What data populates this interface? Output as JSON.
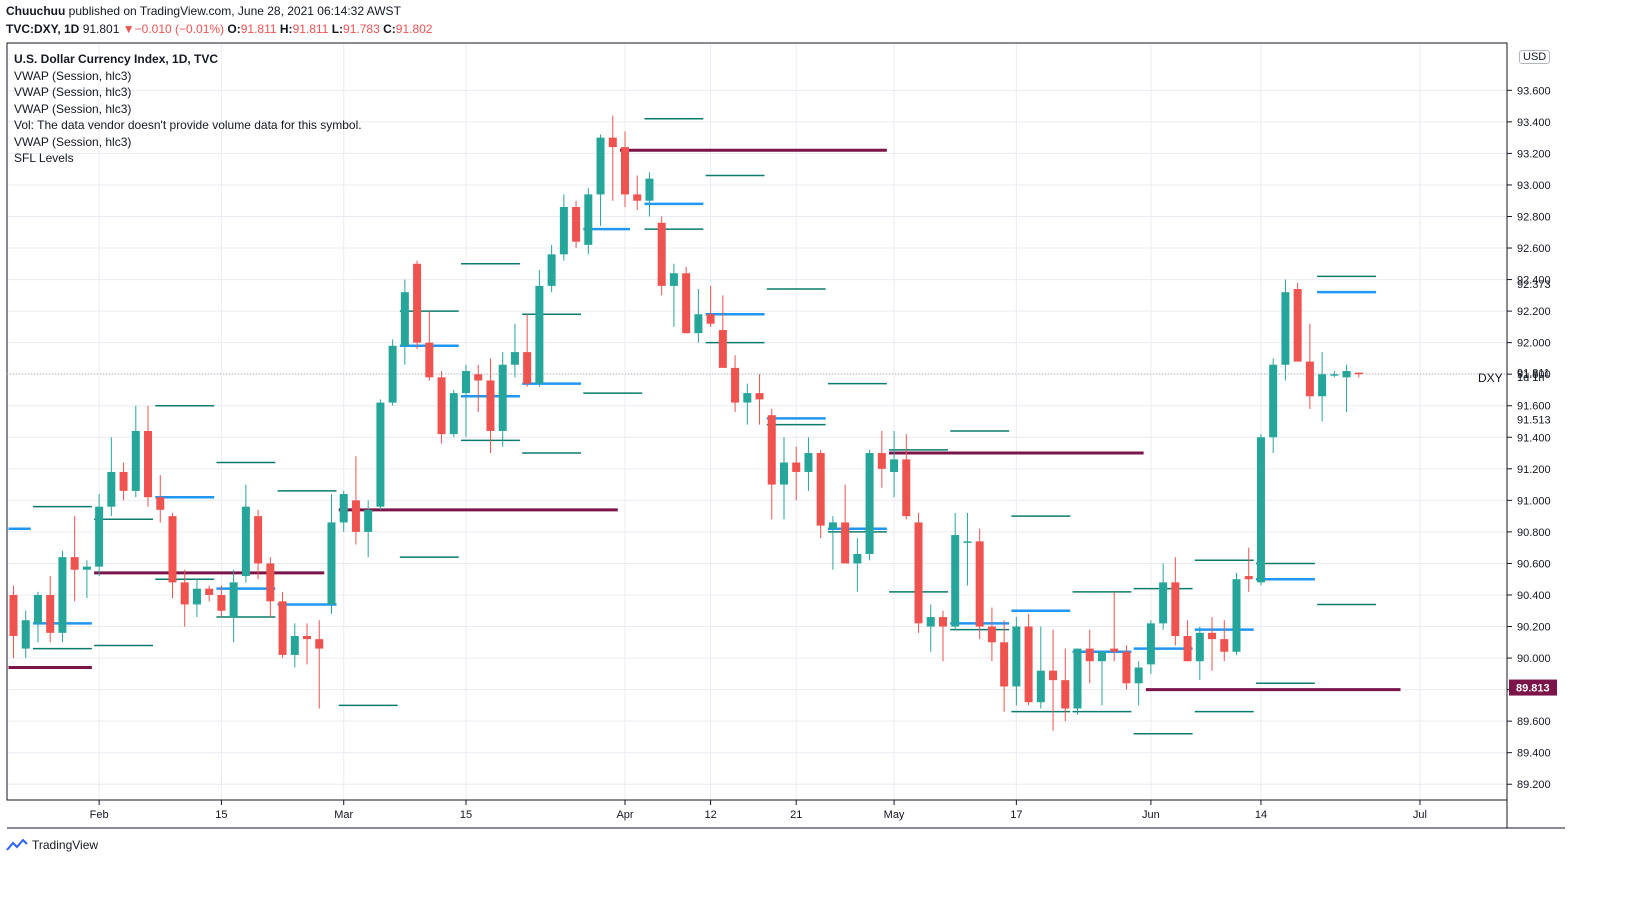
{
  "header": {
    "author": "Chuuchuu",
    "published": "published on TradingView.com, June 28, 2021 06:14:32 AWST",
    "symbol": "TVC:DXY, 1D",
    "last": "91.801",
    "change": "−0.010 (−0.01%)",
    "o_label": "O:",
    "o": "91.811",
    "h_label": "H:",
    "h": "91.811",
    "l_label": "L:",
    "l": "91.783",
    "c_label": "C:",
    "c": "91.802"
  },
  "legend": [
    "U.S. Dollar Currency Index, 1D, TVC",
    "VWAP (Session, hlc3)",
    "VWAP (Session, hlc3)",
    "VWAP (Session, hlc3)",
    "Vol: The data vendor doesn't provide volume data for this symbol.",
    "VWAP (Session, hlc3)",
    "SFL Levels"
  ],
  "symbol_tag": "DXY",
  "timeframe_tag": "1d 1h",
  "currency_button": "USD",
  "branding": "TradingView",
  "colors": {
    "up": "#26a69a",
    "down": "#ef5350",
    "vwap": "#2196f3",
    "level_green": "#0a7c6e",
    "sfl": "#7b1448",
    "grid": "#e9ecf2"
  },
  "chart_data": {
    "type": "candlestick",
    "ylim": [
      89.1,
      93.9
    ],
    "y_ticks": [
      89.2,
      89.4,
      89.6,
      89.8,
      90.0,
      90.2,
      90.4,
      90.6,
      90.8,
      91.0,
      91.2,
      91.4,
      91.6,
      91.8,
      92.0,
      92.2,
      92.4,
      92.6,
      92.8,
      93.0,
      93.2,
      93.4,
      93.6
    ],
    "y_tick_labels": [
      "89.200",
      "89.400",
      "89.600",
      "89.800",
      "90.000",
      "90.200",
      "90.400",
      "90.600",
      "90.800",
      "91.000",
      "91.200",
      "91.400",
      "91.600",
      "91.800",
      "92.000",
      "92.200",
      "92.400",
      "92.600",
      "92.800",
      "93.000",
      "93.200",
      "93.400",
      "93.600"
    ],
    "x_labels": [
      {
        "label": "Feb",
        "idx": 7
      },
      {
        "label": "15",
        "idx": 17
      },
      {
        "label": "Mar",
        "idx": 27
      },
      {
        "label": "15",
        "idx": 37
      },
      {
        "label": "Apr",
        "idx": 50
      },
      {
        "label": "12",
        "idx": 57
      },
      {
        "label": "21",
        "idx": 64
      },
      {
        "label": "May",
        "idx": 72
      },
      {
        "label": "17",
        "idx": 82
      },
      {
        "label": "Jun",
        "idx": 93
      },
      {
        "label": "14",
        "idx": 102
      },
      {
        "label": "Jul",
        "idx": 115
      }
    ],
    "price_labels": [
      {
        "value": 92.373,
        "text": "92.373"
      },
      {
        "value": 91.811,
        "text": "91.811"
      },
      {
        "value": 91.513,
        "text": "91.513"
      }
    ],
    "sfl_label": {
      "value": 89.813,
      "text": "89.813"
    },
    "candles": [
      [
        90.4,
        90.46,
        90.0,
        90.14
      ],
      [
        90.06,
        90.3,
        90.0,
        90.24
      ],
      [
        90.22,
        90.42,
        90.1,
        90.4
      ],
      [
        90.4,
        90.52,
        90.1,
        90.16
      ],
      [
        90.16,
        90.68,
        90.1,
        90.64
      ],
      [
        90.64,
        90.9,
        90.36,
        90.56
      ],
      [
        90.56,
        90.62,
        90.38,
        90.58
      ],
      [
        90.58,
        91.04,
        90.52,
        90.96
      ],
      [
        90.96,
        91.4,
        90.9,
        91.18
      ],
      [
        91.18,
        91.24,
        91.0,
        91.06
      ],
      [
        91.06,
        91.6,
        91.02,
        91.44
      ],
      [
        91.44,
        91.6,
        90.96,
        91.02
      ],
      [
        91.02,
        91.16,
        90.86,
        90.94
      ],
      [
        90.9,
        90.92,
        90.38,
        90.48
      ],
      [
        90.48,
        90.56,
        90.2,
        90.34
      ],
      [
        90.34,
        90.5,
        90.26,
        90.44
      ],
      [
        90.44,
        90.46,
        90.36,
        90.4
      ],
      [
        90.4,
        90.46,
        90.26,
        90.3
      ],
      [
        90.26,
        90.56,
        90.1,
        90.48
      ],
      [
        90.52,
        91.1,
        90.48,
        90.96
      ],
      [
        90.9,
        90.94,
        90.5,
        90.6
      ],
      [
        90.6,
        90.64,
        90.26,
        90.36
      ],
      [
        90.36,
        90.42,
        90.0,
        90.02
      ],
      [
        90.02,
        90.22,
        89.94,
        90.14
      ],
      [
        90.14,
        90.22,
        89.96,
        90.12
      ],
      [
        90.12,
        90.24,
        89.68,
        90.06
      ],
      [
        90.34,
        91.04,
        90.28,
        90.86
      ],
      [
        90.86,
        91.06,
        90.8,
        91.04
      ],
      [
        91.0,
        91.28,
        90.72,
        90.8
      ],
      [
        90.8,
        91.0,
        90.64,
        90.94
      ],
      [
        90.96,
        91.64,
        90.94,
        91.62
      ],
      [
        91.62,
        92.02,
        91.6,
        91.98
      ],
      [
        91.98,
        92.4,
        91.86,
        92.32
      ],
      [
        92.5,
        92.52,
        91.96,
        92.0
      ],
      [
        92.0,
        92.2,
        91.76,
        91.78
      ],
      [
        91.78,
        91.82,
        91.36,
        91.42
      ],
      [
        91.42,
        91.7,
        91.4,
        91.68
      ],
      [
        91.68,
        91.86,
        91.4,
        91.82
      ],
      [
        91.8,
        91.86,
        91.56,
        91.76
      ],
      [
        91.76,
        91.9,
        91.3,
        91.44
      ],
      [
        91.44,
        91.94,
        91.34,
        91.86
      ],
      [
        91.86,
        92.12,
        91.78,
        91.94
      ],
      [
        91.94,
        92.18,
        91.72,
        91.74
      ],
      [
        91.74,
        92.46,
        91.72,
        92.36
      ],
      [
        92.36,
        92.62,
        92.32,
        92.56
      ],
      [
        92.56,
        92.94,
        92.52,
        92.86
      ],
      [
        92.86,
        92.9,
        92.6,
        92.64
      ],
      [
        92.62,
        92.98,
        92.56,
        92.94
      ],
      [
        92.94,
        93.32,
        92.74,
        93.3
      ],
      [
        93.3,
        93.44,
        92.9,
        93.24
      ],
      [
        93.24,
        93.34,
        92.86,
        92.94
      ],
      [
        92.94,
        93.06,
        92.84,
        92.9
      ],
      [
        92.9,
        93.08,
        92.8,
        93.04
      ],
      [
        92.76,
        92.8,
        92.3,
        92.36
      ],
      [
        92.36,
        92.5,
        92.1,
        92.44
      ],
      [
        92.44,
        92.48,
        92.06,
        92.06
      ],
      [
        92.06,
        92.34,
        92.0,
        92.18
      ],
      [
        92.18,
        92.36,
        92.1,
        92.12
      ],
      [
        92.08,
        92.3,
        91.86,
        91.84
      ],
      [
        91.84,
        91.92,
        91.56,
        91.62
      ],
      [
        91.62,
        91.74,
        91.48,
        91.68
      ],
      [
        91.68,
        91.8,
        91.48,
        91.64
      ],
      [
        91.54,
        91.58,
        90.88,
        91.1
      ],
      [
        91.1,
        91.4,
        90.88,
        91.24
      ],
      [
        91.24,
        91.34,
        91.0,
        91.18
      ],
      [
        91.18,
        91.4,
        91.06,
        91.3
      ],
      [
        91.3,
        91.32,
        90.76,
        90.84
      ],
      [
        90.82,
        90.9,
        90.56,
        90.86
      ],
      [
        90.86,
        91.1,
        90.6,
        90.6
      ],
      [
        90.6,
        90.76,
        90.42,
        90.66
      ],
      [
        90.66,
        91.32,
        90.62,
        91.3
      ],
      [
        91.3,
        91.44,
        91.08,
        91.2
      ],
      [
        91.18,
        91.44,
        91.02,
        91.26
      ],
      [
        91.26,
        91.42,
        90.88,
        90.9
      ],
      [
        90.86,
        90.92,
        90.16,
        90.22
      ],
      [
        90.2,
        90.34,
        90.04,
        90.26
      ],
      [
        90.26,
        90.3,
        89.98,
        90.2
      ],
      [
        90.2,
        90.92,
        90.18,
        90.78
      ],
      [
        90.74,
        90.92,
        90.46,
        90.74
      ],
      [
        90.74,
        90.82,
        90.12,
        90.2
      ],
      [
        90.2,
        90.32,
        89.98,
        90.1
      ],
      [
        90.1,
        90.24,
        89.66,
        89.82
      ],
      [
        89.82,
        90.26,
        89.7,
        90.2
      ],
      [
        90.2,
        90.28,
        89.7,
        89.72
      ],
      [
        89.72,
        90.2,
        89.68,
        89.92
      ],
      [
        89.92,
        90.18,
        89.54,
        89.86
      ],
      [
        89.86,
        90.06,
        89.6,
        89.68
      ],
      [
        89.68,
        90.06,
        89.64,
        90.06
      ],
      [
        90.06,
        90.18,
        89.84,
        89.98
      ],
      [
        89.98,
        90.04,
        89.7,
        90.04
      ],
      [
        90.06,
        90.42,
        89.98,
        90.04
      ],
      [
        90.04,
        90.08,
        89.8,
        89.84
      ],
      [
        89.84,
        89.98,
        89.7,
        89.94
      ],
      [
        89.96,
        90.24,
        89.9,
        90.22
      ],
      [
        90.22,
        90.6,
        90.18,
        90.48
      ],
      [
        90.48,
        90.64,
        90.08,
        90.14
      ],
      [
        90.14,
        90.24,
        89.98,
        89.98
      ],
      [
        89.98,
        90.2,
        89.86,
        90.16
      ],
      [
        90.16,
        90.26,
        89.92,
        90.12
      ],
      [
        90.12,
        90.24,
        89.98,
        90.04
      ],
      [
        90.04,
        90.54,
        90.02,
        90.5
      ],
      [
        90.52,
        90.7,
        90.42,
        90.5
      ],
      [
        90.48,
        91.42,
        90.46,
        91.4
      ],
      [
        91.4,
        91.9,
        91.3,
        91.86
      ],
      [
        91.86,
        92.4,
        91.76,
        92.32
      ],
      [
        92.34,
        92.38,
        91.88,
        91.88
      ],
      [
        91.88,
        92.12,
        91.58,
        91.66
      ],
      [
        91.66,
        91.94,
        91.5,
        91.8
      ],
      [
        91.8,
        91.82,
        91.78,
        91.8
      ],
      [
        91.78,
        91.86,
        91.56,
        91.82
      ],
      [
        91.81,
        91.81,
        91.78,
        91.8
      ]
    ],
    "levels": [
      {
        "y": 90.82,
        "x0": 0,
        "x1": 1,
        "kind": "vwap"
      },
      {
        "y": 90.96,
        "x0": 2,
        "x1": 6,
        "kind": "green"
      },
      {
        "y": 90.22,
        "x0": 2,
        "x1": 6,
        "kind": "vwap"
      },
      {
        "y": 90.06,
        "x0": 2,
        "x1": 6,
        "kind": "green"
      },
      {
        "y": 89.94,
        "x0": 0,
        "x1": 6,
        "kind": "sfl"
      },
      {
        "y": 90.88,
        "x0": 7,
        "x1": 11,
        "kind": "green"
      },
      {
        "y": 90.08,
        "x0": 7,
        "x1": 11,
        "kind": "green"
      },
      {
        "y": 90.54,
        "x0": 7,
        "x1": 25,
        "kind": "sfl"
      },
      {
        "y": 91.6,
        "x0": 12,
        "x1": 16,
        "kind": "green"
      },
      {
        "y": 91.02,
        "x0": 12,
        "x1": 16,
        "kind": "vwap"
      },
      {
        "y": 90.5,
        "x0": 12,
        "x1": 16,
        "kind": "green"
      },
      {
        "y": 91.24,
        "x0": 17,
        "x1": 21,
        "kind": "green"
      },
      {
        "y": 90.44,
        "x0": 17,
        "x1": 21,
        "kind": "vwap"
      },
      {
        "y": 90.26,
        "x0": 17,
        "x1": 21,
        "kind": "green"
      },
      {
        "y": 91.06,
        "x0": 22,
        "x1": 26,
        "kind": "green"
      },
      {
        "y": 90.34,
        "x0": 22,
        "x1": 26,
        "kind": "vwap"
      },
      {
        "y": 89.7,
        "x0": 27,
        "x1": 31,
        "kind": "green"
      },
      {
        "y": 90.94,
        "x0": 27,
        "x1": 49,
        "kind": "sfl"
      },
      {
        "y": 90.64,
        "x0": 32,
        "x1": 36,
        "kind": "green"
      },
      {
        "y": 92.2,
        "x0": 32,
        "x1": 36,
        "kind": "green"
      },
      {
        "y": 91.98,
        "x0": 32,
        "x1": 36,
        "kind": "vwap"
      },
      {
        "y": 92.5,
        "x0": 37,
        "x1": 41,
        "kind": "green"
      },
      {
        "y": 91.66,
        "x0": 37,
        "x1": 41,
        "kind": "vwap"
      },
      {
        "y": 91.38,
        "x0": 37,
        "x1": 41,
        "kind": "green"
      },
      {
        "y": 92.18,
        "x0": 42,
        "x1": 46,
        "kind": "green"
      },
      {
        "y": 91.74,
        "x0": 42,
        "x1": 46,
        "kind": "vwap"
      },
      {
        "y": 91.3,
        "x0": 42,
        "x1": 46,
        "kind": "green"
      },
      {
        "y": 92.72,
        "x0": 47,
        "x1": 50,
        "kind": "vwap"
      },
      {
        "y": 91.68,
        "x0": 47,
        "x1": 51,
        "kind": "green"
      },
      {
        "y": 93.22,
        "x0": 50,
        "x1": 71,
        "kind": "sfl"
      },
      {
        "y": 93.42,
        "x0": 52,
        "x1": 56,
        "kind": "green"
      },
      {
        "y": 92.88,
        "x0": 52,
        "x1": 56,
        "kind": "vwap"
      },
      {
        "y": 92.72,
        "x0": 52,
        "x1": 56,
        "kind": "green"
      },
      {
        "y": 93.06,
        "x0": 57,
        "x1": 61,
        "kind": "green"
      },
      {
        "y": 92.18,
        "x0": 57,
        "x1": 61,
        "kind": "vwap"
      },
      {
        "y": 92.0,
        "x0": 57,
        "x1": 61,
        "kind": "green"
      },
      {
        "y": 92.34,
        "x0": 62,
        "x1": 66,
        "kind": "green"
      },
      {
        "y": 91.52,
        "x0": 62,
        "x1": 66,
        "kind": "vwap"
      },
      {
        "y": 91.48,
        "x0": 62,
        "x1": 66,
        "kind": "green"
      },
      {
        "y": 91.74,
        "x0": 67,
        "x1": 71,
        "kind": "green"
      },
      {
        "y": 90.82,
        "x0": 67,
        "x1": 71,
        "kind": "vwap"
      },
      {
        "y": 90.8,
        "x0": 67,
        "x1": 71,
        "kind": "green"
      },
      {
        "y": 91.32,
        "x0": 72,
        "x1": 76,
        "kind": "green"
      },
      {
        "y": 91.3,
        "x0": 72,
        "x1": 92,
        "kind": "sfl"
      },
      {
        "y": 90.42,
        "x0": 72,
        "x1": 76,
        "kind": "green"
      },
      {
        "y": 91.44,
        "x0": 77,
        "x1": 81,
        "kind": "green"
      },
      {
        "y": 90.22,
        "x0": 77,
        "x1": 81,
        "kind": "vwap"
      },
      {
        "y": 90.18,
        "x0": 77,
        "x1": 81,
        "kind": "green"
      },
      {
        "y": 90.9,
        "x0": 82,
        "x1": 86,
        "kind": "green"
      },
      {
        "y": 90.3,
        "x0": 82,
        "x1": 86,
        "kind": "vwap"
      },
      {
        "y": 89.66,
        "x0": 82,
        "x1": 86,
        "kind": "green"
      },
      {
        "y": 90.42,
        "x0": 87,
        "x1": 91,
        "kind": "green"
      },
      {
        "y": 90.04,
        "x0": 87,
        "x1": 91,
        "kind": "vwap"
      },
      {
        "y": 89.66,
        "x0": 87,
        "x1": 91,
        "kind": "green"
      },
      {
        "y": 89.52,
        "x0": 92,
        "x1": 96,
        "kind": "green"
      },
      {
        "y": 90.06,
        "x0": 92,
        "x1": 96,
        "kind": "vwap"
      },
      {
        "y": 90.44,
        "x0": 92,
        "x1": 96,
        "kind": "green"
      },
      {
        "y": 89.8,
        "x0": 93,
        "x1": 113,
        "kind": "sfl"
      },
      {
        "y": 90.62,
        "x0": 97,
        "x1": 101,
        "kind": "green"
      },
      {
        "y": 90.18,
        "x0": 97,
        "x1": 101,
        "kind": "vwap"
      },
      {
        "y": 89.66,
        "x0": 97,
        "x1": 101,
        "kind": "green"
      },
      {
        "y": 90.6,
        "x0": 102,
        "x1": 106,
        "kind": "green"
      },
      {
        "y": 90.5,
        "x0": 102,
        "x1": 106,
        "kind": "vwap"
      },
      {
        "y": 89.84,
        "x0": 102,
        "x1": 106,
        "kind": "green"
      },
      {
        "y": 92.42,
        "x0": 107,
        "x1": 111,
        "kind": "green"
      },
      {
        "y": 92.32,
        "x0": 107,
        "x1": 111,
        "kind": "vwap"
      },
      {
        "y": 90.34,
        "x0": 107,
        "x1": 111,
        "kind": "green"
      }
    ]
  }
}
